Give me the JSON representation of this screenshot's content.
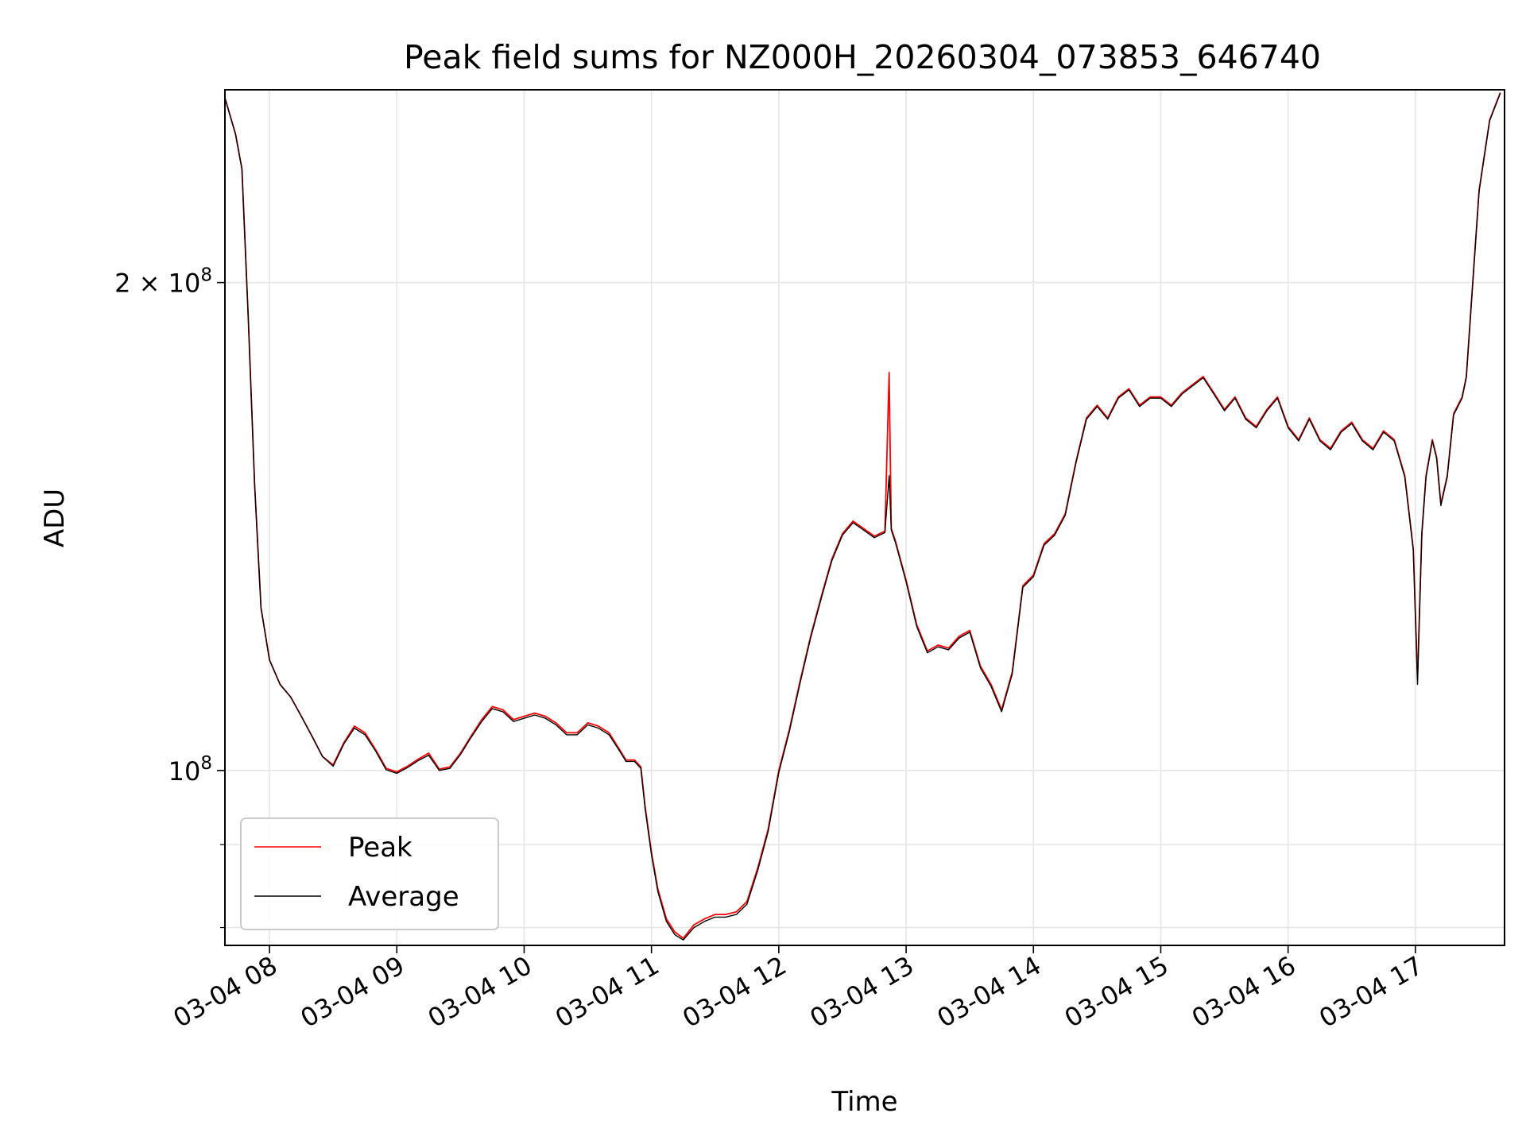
{
  "chart_data": {
    "type": "line",
    "title": "Peak field sums for NZ000H_20260304_073853_646740",
    "xlabel": "Time",
    "ylabel": "ADU",
    "x_axis_type": "datetime",
    "xlim": [
      "2026-03-04 07:39",
      "2026-03-04 17:42"
    ],
    "ylim": [
      78000000,
      263000000
    ],
    "yscale": "log",
    "grid": true,
    "legend_position": "lower-left",
    "x_ticks": [
      "03-04 08",
      "03-04 09",
      "03-04 10",
      "03-04 11",
      "03-04 12",
      "03-04 13",
      "03-04 14",
      "03-04 15",
      "03-04 16",
      "03-04 17"
    ],
    "y_ticks": [
      {
        "value": 100000000,
        "base": "10",
        "exp": "8",
        "coef": ""
      },
      {
        "value": 200000000,
        "base": "10",
        "exp": "8",
        "coef": "2 × "
      }
    ],
    "series": [
      {
        "name": "Peak",
        "color": "#ff0000",
        "points": [
          [
            "07:39",
            260
          ],
          [
            "07:44",
            247
          ],
          [
            "07:47",
            235
          ],
          [
            "07:50",
            190
          ],
          [
            "07:53",
            150
          ],
          [
            "07:56",
            126
          ],
          [
            "08:00",
            117
          ],
          [
            "08:05",
            113
          ],
          [
            "08:10",
            111
          ],
          [
            "08:15",
            108
          ],
          [
            "08:20",
            105
          ],
          [
            "08:25",
            102
          ],
          [
            "08:30",
            100.8
          ],
          [
            "08:35",
            104
          ],
          [
            "08:40",
            106.5
          ],
          [
            "08:45",
            105.5
          ],
          [
            "08:50",
            103
          ],
          [
            "08:55",
            100.3
          ],
          [
            "09:00",
            99.8
          ],
          [
            "09:05",
            100.6
          ],
          [
            "09:10",
            101.6
          ],
          [
            "09:15",
            102.5
          ],
          [
            "09:20",
            100.2
          ],
          [
            "09:25",
            100.5
          ],
          [
            "09:30",
            102.5
          ],
          [
            "09:35",
            105
          ],
          [
            "09:40",
            107.5
          ],
          [
            "09:45",
            109.5
          ],
          [
            "09:50",
            109
          ],
          [
            "09:55",
            107.5
          ],
          [
            "10:00",
            108
          ],
          [
            "10:05",
            108.5
          ],
          [
            "10:10",
            108
          ],
          [
            "10:15",
            107
          ],
          [
            "10:20",
            105.5
          ],
          [
            "10:25",
            105.5
          ],
          [
            "10:30",
            107
          ],
          [
            "10:35",
            106.5
          ],
          [
            "10:40",
            105.5
          ],
          [
            "10:45",
            103
          ],
          [
            "10:48",
            101.5
          ],
          [
            "10:52",
            101.5
          ],
          [
            "10:55",
            100.5
          ],
          [
            "10:57",
            95
          ],
          [
            "11:00",
            89
          ],
          [
            "11:03",
            84.5
          ],
          [
            "11:07",
            81
          ],
          [
            "11:11",
            79.5
          ],
          [
            "11:15",
            78.8
          ],
          [
            "11:20",
            80.3
          ],
          [
            "11:25",
            81
          ],
          [
            "11:30",
            81.5
          ],
          [
            "11:35",
            81.5
          ],
          [
            "11:40",
            81.8
          ],
          [
            "11:45",
            83
          ],
          [
            "11:50",
            87
          ],
          [
            "11:55",
            92
          ],
          [
            "12:00",
            100
          ],
          [
            "12:05",
            106
          ],
          [
            "12:10",
            113.5
          ],
          [
            "12:15",
            121
          ],
          [
            "12:20",
            128
          ],
          [
            "12:25",
            135
          ],
          [
            "12:30",
            140
          ],
          [
            "12:35",
            142.5
          ],
          [
            "12:40",
            141
          ],
          [
            "12:45",
            139.5
          ],
          [
            "12:50",
            140.5
          ],
          [
            "12:52",
            176
          ],
          [
            "12:53",
            141
          ],
          [
            "12:55",
            138.5
          ],
          [
            "13:00",
            131
          ],
          [
            "13:05",
            123
          ],
          [
            "13:10",
            118.5
          ],
          [
            "13:15",
            119.5
          ],
          [
            "13:20",
            119
          ],
          [
            "13:25",
            121
          ],
          [
            "13:30",
            122
          ],
          [
            "13:35",
            116
          ],
          [
            "13:40",
            113
          ],
          [
            "13:45",
            109
          ],
          [
            "13:50",
            115
          ],
          [
            "13:55",
            130
          ],
          [
            "14:00",
            132
          ],
          [
            "14:05",
            138
          ],
          [
            "14:10",
            140
          ],
          [
            "14:15",
            144
          ],
          [
            "14:20",
            155
          ],
          [
            "14:25",
            165
          ],
          [
            "14:30",
            168
          ],
          [
            "14:35",
            165
          ],
          [
            "14:40",
            170
          ],
          [
            "14:45",
            172
          ],
          [
            "14:50",
            168
          ],
          [
            "14:55",
            170
          ],
          [
            "15:00",
            170
          ],
          [
            "15:05",
            168
          ],
          [
            "15:10",
            171
          ],
          [
            "15:15",
            173
          ],
          [
            "15:20",
            175
          ],
          [
            "15:25",
            171
          ],
          [
            "15:30",
            167
          ],
          [
            "15:35",
            170
          ],
          [
            "15:40",
            165
          ],
          [
            "15:45",
            163
          ],
          [
            "15:50",
            167
          ],
          [
            "15:55",
            170
          ],
          [
            "16:00",
            163
          ],
          [
            "16:05",
            160
          ],
          [
            "16:10",
            165
          ],
          [
            "16:15",
            160
          ],
          [
            "16:20",
            158
          ],
          [
            "16:25",
            162
          ],
          [
            "16:30",
            164
          ],
          [
            "16:35",
            160
          ],
          [
            "16:40",
            158
          ],
          [
            "16:45",
            162
          ],
          [
            "16:50",
            160
          ],
          [
            "16:55",
            152
          ],
          [
            "16:59",
            137
          ],
          [
            "17:01",
            114
          ],
          [
            "17:03",
            140
          ],
          [
            "17:05",
            152
          ],
          [
            "17:08",
            160
          ],
          [
            "17:10",
            156
          ],
          [
            "17:12",
            146
          ],
          [
            "17:15",
            152
          ],
          [
            "17:18",
            166
          ],
          [
            "17:22",
            170
          ],
          [
            "17:24",
            175
          ],
          [
            "17:27",
            200
          ],
          [
            "17:30",
            228
          ],
          [
            "17:35",
            252
          ],
          [
            "17:40",
            262
          ]
        ]
      },
      {
        "name": "Average",
        "color": "#000000",
        "points": [
          [
            "07:39",
            260
          ],
          [
            "07:44",
            247
          ],
          [
            "07:47",
            235
          ],
          [
            "07:50",
            190
          ],
          [
            "07:53",
            150
          ],
          [
            "07:56",
            126
          ],
          [
            "08:00",
            117
          ],
          [
            "08:05",
            113
          ],
          [
            "08:10",
            111
          ],
          [
            "08:15",
            108
          ],
          [
            "08:20",
            105
          ],
          [
            "08:25",
            102
          ],
          [
            "08:30",
            100.6
          ],
          [
            "08:35",
            103.8
          ],
          [
            "08:40",
            106.2
          ],
          [
            "08:45",
            105.2
          ],
          [
            "08:50",
            102.8
          ],
          [
            "08:55",
            100.1
          ],
          [
            "09:00",
            99.6
          ],
          [
            "09:05",
            100.4
          ],
          [
            "09:10",
            101.4
          ],
          [
            "09:15",
            102.2
          ],
          [
            "09:20",
            100
          ],
          [
            "09:25",
            100.3
          ],
          [
            "09:30",
            102.3
          ],
          [
            "09:35",
            104.8
          ],
          [
            "09:40",
            107.2
          ],
          [
            "09:45",
            109.2
          ],
          [
            "09:50",
            108.7
          ],
          [
            "09:55",
            107.2
          ],
          [
            "10:00",
            107.7
          ],
          [
            "10:05",
            108.2
          ],
          [
            "10:10",
            107.7
          ],
          [
            "10:15",
            106.7
          ],
          [
            "10:20",
            105.2
          ],
          [
            "10:25",
            105.2
          ],
          [
            "10:30",
            106.7
          ],
          [
            "10:35",
            106.2
          ],
          [
            "10:40",
            105.2
          ],
          [
            "10:45",
            102.8
          ],
          [
            "10:48",
            101.3
          ],
          [
            "10:52",
            101.3
          ],
          [
            "10:55",
            100.3
          ],
          [
            "10:57",
            94.7
          ],
          [
            "11:00",
            88.7
          ],
          [
            "11:03",
            84.2
          ],
          [
            "11:07",
            80.7
          ],
          [
            "11:11",
            79.2
          ],
          [
            "11:15",
            78.6
          ],
          [
            "11:20",
            80
          ],
          [
            "11:25",
            80.7
          ],
          [
            "11:30",
            81.2
          ],
          [
            "11:35",
            81.2
          ],
          [
            "11:40",
            81.5
          ],
          [
            "11:45",
            82.7
          ],
          [
            "11:50",
            86.7
          ],
          [
            "11:55",
            91.7
          ],
          [
            "12:00",
            99.7
          ],
          [
            "12:05",
            105.7
          ],
          [
            "12:10",
            113.2
          ],
          [
            "12:15",
            120.7
          ],
          [
            "12:20",
            127.7
          ],
          [
            "12:25",
            134.7
          ],
          [
            "12:30",
            139.7
          ],
          [
            "12:35",
            142.2
          ],
          [
            "12:40",
            140.7
          ],
          [
            "12:45",
            139.2
          ],
          [
            "12:50",
            140.2
          ],
          [
            "12:52",
            152
          ],
          [
            "12:53",
            140.7
          ],
          [
            "12:55",
            138.2
          ],
          [
            "13:00",
            130.7
          ],
          [
            "13:05",
            122.7
          ],
          [
            "13:10",
            118.2
          ],
          [
            "13:15",
            119.2
          ],
          [
            "13:20",
            118.7
          ],
          [
            "13:25",
            120.7
          ],
          [
            "13:30",
            121.7
          ],
          [
            "13:35",
            115.7
          ],
          [
            "13:40",
            112.7
          ],
          [
            "13:45",
            108.7
          ],
          [
            "13:50",
            114.7
          ],
          [
            "13:55",
            129.7
          ],
          [
            "14:00",
            131.7
          ],
          [
            "14:05",
            137.7
          ],
          [
            "14:10",
            139.7
          ],
          [
            "14:15",
            143.7
          ],
          [
            "14:20",
            154.7
          ],
          [
            "14:25",
            164.7
          ],
          [
            "14:30",
            167.7
          ],
          [
            "14:35",
            164.7
          ],
          [
            "14:40",
            169.7
          ],
          [
            "14:45",
            171.7
          ],
          [
            "14:50",
            167.7
          ],
          [
            "14:55",
            169.7
          ],
          [
            "15:00",
            169.7
          ],
          [
            "15:05",
            167.7
          ],
          [
            "15:10",
            170.7
          ],
          [
            "15:15",
            172.7
          ],
          [
            "15:20",
            174.7
          ],
          [
            "15:25",
            170.7
          ],
          [
            "15:30",
            166.7
          ],
          [
            "15:35",
            169.7
          ],
          [
            "15:40",
            164.7
          ],
          [
            "15:45",
            162.7
          ],
          [
            "15:50",
            166.7
          ],
          [
            "15:55",
            169.7
          ],
          [
            "16:00",
            162.7
          ],
          [
            "16:05",
            159.7
          ],
          [
            "16:10",
            164.7
          ],
          [
            "16:15",
            159.7
          ],
          [
            "16:20",
            157.7
          ],
          [
            "16:25",
            161.7
          ],
          [
            "16:30",
            163.7
          ],
          [
            "16:35",
            159.7
          ],
          [
            "16:40",
            157.7
          ],
          [
            "16:45",
            161.7
          ],
          [
            "16:50",
            159.7
          ],
          [
            "16:55",
            151.7
          ],
          [
            "16:59",
            136.7
          ],
          [
            "17:01",
            113
          ],
          [
            "17:03",
            139.7
          ],
          [
            "17:05",
            151.7
          ],
          [
            "17:08",
            159.7
          ],
          [
            "17:10",
            155.7
          ],
          [
            "17:12",
            145.7
          ],
          [
            "17:15",
            151.7
          ],
          [
            "17:18",
            165.7
          ],
          [
            "17:22",
            169.7
          ],
          [
            "17:24",
            174.7
          ],
          [
            "17:27",
            199.7
          ],
          [
            "17:30",
            227.7
          ],
          [
            "17:35",
            251.7
          ],
          [
            "17:40",
            261.7
          ]
        ]
      }
    ],
    "value_unit_multiplier": 1000000
  }
}
